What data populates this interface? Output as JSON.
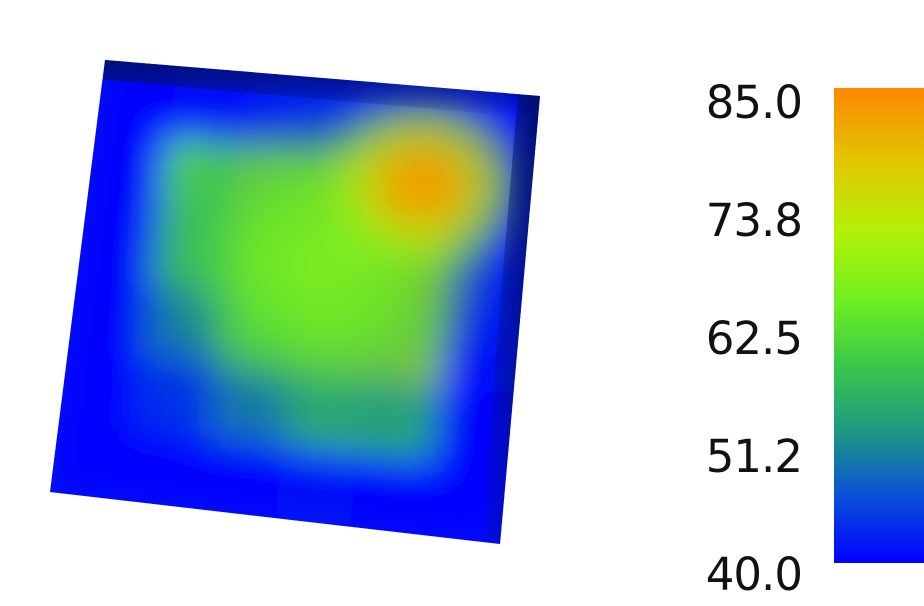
{
  "chart_data": {
    "type": "heatmap",
    "title": "",
    "xlabel": "",
    "ylabel": "",
    "colorbar": {
      "min": 40.0,
      "max": 85.0,
      "tick_labels": [
        "85.0",
        "73.8",
        "62.5",
        "51.2",
        "40.0"
      ],
      "tick_values": [
        85.0,
        73.8,
        62.5,
        51.2,
        40.0
      ],
      "colors": [
        "#0000ff",
        "#0a50d8",
        "#1e9a80",
        "#4ee23a",
        "#9ff40a",
        "#d8e000",
        "#f0a400",
        "#ff8800"
      ]
    },
    "field": {
      "boundary_value": 40.0,
      "peak_value": 85.0,
      "peak_location": "upper-right",
      "grid_rows": 6,
      "grid_cols": 6,
      "values": [
        [
          40.0,
          41.0,
          42.0,
          42.0,
          41.0,
          40.0
        ],
        [
          40.5,
          60.0,
          68.0,
          76.0,
          83.0,
          41.0
        ],
        [
          40.5,
          58.0,
          68.0,
          74.0,
          78.0,
          41.0
        ],
        [
          40.5,
          50.0,
          62.0,
          68.0,
          70.0,
          41.0
        ],
        [
          40.0,
          44.0,
          50.0,
          55.0,
          54.0,
          40.5
        ],
        [
          40.0,
          40.0,
          40.5,
          41.0,
          40.5,
          40.0
        ]
      ]
    }
  }
}
